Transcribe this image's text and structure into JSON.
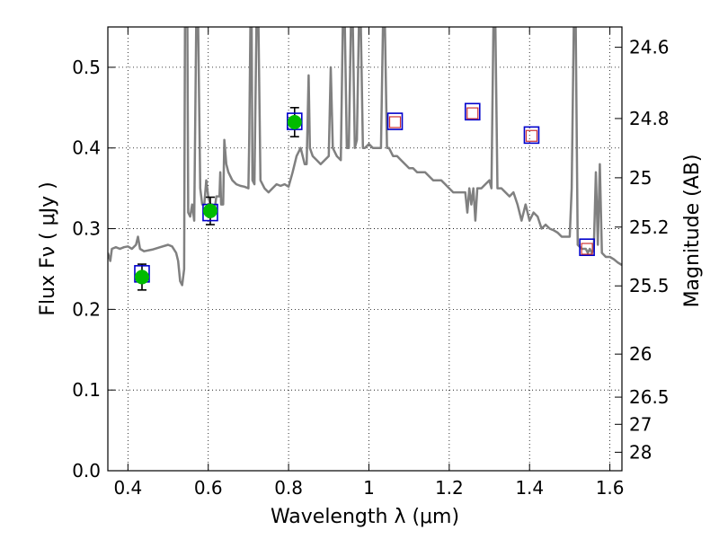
{
  "chart_data": {
    "type": "scatter",
    "xlabel": "Wavelength  λ (μm)",
    "ylabel": "Flux  Fν  ( μJy )",
    "ylabel_right": "Magnitude (AB)",
    "xlim": [
      0.35,
      1.63
    ],
    "ylim": [
      0.0,
      0.55
    ],
    "grid": true,
    "x_ticks": [
      {
        "value": 0.4,
        "label": "0.4"
      },
      {
        "value": 0.6,
        "label": "0.6"
      },
      {
        "value": 0.8,
        "label": "0.8"
      },
      {
        "value": 1.0,
        "label": "1"
      },
      {
        "value": 1.2,
        "label": "1.2"
      },
      {
        "value": 1.4,
        "label": "1.4"
      },
      {
        "value": 1.6,
        "label": "1.6"
      }
    ],
    "y_ticks": [
      {
        "value": 0.0,
        "label": "0.0"
      },
      {
        "value": 0.1,
        "label": "0.1"
      },
      {
        "value": 0.2,
        "label": "0.2"
      },
      {
        "value": 0.3,
        "label": "0.3"
      },
      {
        "value": 0.4,
        "label": "0.4"
      },
      {
        "value": 0.5,
        "label": "0.5"
      }
    ],
    "mag_ticks": [
      {
        "value": 24.6,
        "label": "24.6"
      },
      {
        "value": 24.8,
        "label": "24.8"
      },
      {
        "value": 25.0,
        "label": "25"
      },
      {
        "value": 25.2,
        "label": "25.2"
      },
      {
        "value": 25.5,
        "label": "25.5"
      },
      {
        "value": 26.0,
        "label": "26"
      },
      {
        "value": 26.5,
        "label": "26.5"
      },
      {
        "value": 27.0,
        "label": "27"
      },
      {
        "value": 28.0,
        "label": "28"
      }
    ],
    "series": [
      {
        "kind": "line",
        "color": "#808080",
        "points": [
          [
            0.35,
            0.27
          ],
          [
            0.356,
            0.26
          ],
          [
            0.36,
            0.275
          ],
          [
            0.37,
            0.277
          ],
          [
            0.38,
            0.275
          ],
          [
            0.39,
            0.277
          ],
          [
            0.4,
            0.278
          ],
          [
            0.41,
            0.275
          ],
          [
            0.42,
            0.28
          ],
          [
            0.425,
            0.29
          ],
          [
            0.43,
            0.275
          ],
          [
            0.44,
            0.272
          ],
          [
            0.46,
            0.274
          ],
          [
            0.48,
            0.277
          ],
          [
            0.5,
            0.28
          ],
          [
            0.51,
            0.278
          ],
          [
            0.52,
            0.27
          ],
          [
            0.525,
            0.26
          ],
          [
            0.53,
            0.235
          ],
          [
            0.535,
            0.23
          ],
          [
            0.54,
            0.25
          ],
          [
            0.542,
            0.55
          ],
          [
            0.548,
            0.55
          ],
          [
            0.55,
            0.32
          ],
          [
            0.555,
            0.315
          ],
          [
            0.56,
            0.33
          ],
          [
            0.565,
            0.31
          ],
          [
            0.57,
            0.55
          ],
          [
            0.575,
            0.55
          ],
          [
            0.58,
            0.35
          ],
          [
            0.585,
            0.33
          ],
          [
            0.59,
            0.33
          ],
          [
            0.595,
            0.36
          ],
          [
            0.6,
            0.34
          ],
          [
            0.605,
            0.33
          ],
          [
            0.61,
            0.33
          ],
          [
            0.615,
            0.32
          ],
          [
            0.62,
            0.34
          ],
          [
            0.628,
            0.34
          ],
          [
            0.63,
            0.37
          ],
          [
            0.632,
            0.33
          ],
          [
            0.637,
            0.33
          ],
          [
            0.64,
            0.41
          ],
          [
            0.645,
            0.38
          ],
          [
            0.65,
            0.37
          ],
          [
            0.66,
            0.36
          ],
          [
            0.67,
            0.355
          ],
          [
            0.68,
            0.353
          ],
          [
            0.69,
            0.352
          ],
          [
            0.7,
            0.35
          ],
          [
            0.702,
            0.41
          ],
          [
            0.705,
            0.55
          ],
          [
            0.708,
            0.55
          ],
          [
            0.71,
            0.36
          ],
          [
            0.715,
            0.355
          ],
          [
            0.72,
            0.55
          ],
          [
            0.725,
            0.55
          ],
          [
            0.73,
            0.36
          ],
          [
            0.74,
            0.35
          ],
          [
            0.75,
            0.345
          ],
          [
            0.76,
            0.35
          ],
          [
            0.77,
            0.355
          ],
          [
            0.78,
            0.353
          ],
          [
            0.79,
            0.355
          ],
          [
            0.8,
            0.352
          ],
          [
            0.81,
            0.37
          ],
          [
            0.82,
            0.39
          ],
          [
            0.83,
            0.4
          ],
          [
            0.84,
            0.38
          ],
          [
            0.845,
            0.38
          ],
          [
            0.85,
            0.49
          ],
          [
            0.853,
            0.4
          ],
          [
            0.86,
            0.39
          ],
          [
            0.87,
            0.385
          ],
          [
            0.88,
            0.38
          ],
          [
            0.89,
            0.385
          ],
          [
            0.9,
            0.39
          ],
          [
            0.905,
            0.5
          ],
          [
            0.91,
            0.4
          ],
          [
            0.92,
            0.39
          ],
          [
            0.93,
            0.385
          ],
          [
            0.935,
            0.55
          ],
          [
            0.94,
            0.55
          ],
          [
            0.945,
            0.4
          ],
          [
            0.95,
            0.4
          ],
          [
            0.955,
            0.55
          ],
          [
            0.96,
            0.55
          ],
          [
            0.965,
            0.4
          ],
          [
            0.97,
            0.41
          ],
          [
            0.975,
            0.55
          ],
          [
            0.98,
            0.55
          ],
          [
            0.985,
            0.4
          ],
          [
            0.99,
            0.4
          ],
          [
            1.0,
            0.405
          ],
          [
            1.01,
            0.4
          ],
          [
            1.02,
            0.4
          ],
          [
            1.03,
            0.4
          ],
          [
            1.035,
            0.55
          ],
          [
            1.04,
            0.55
          ],
          [
            1.045,
            0.4
          ],
          [
            1.05,
            0.4
          ],
          [
            1.06,
            0.39
          ],
          [
            1.07,
            0.39
          ],
          [
            1.08,
            0.385
          ],
          [
            1.09,
            0.38
          ],
          [
            1.1,
            0.375
          ],
          [
            1.11,
            0.375
          ],
          [
            1.12,
            0.37
          ],
          [
            1.13,
            0.37
          ],
          [
            1.14,
            0.37
          ],
          [
            1.15,
            0.365
          ],
          [
            1.16,
            0.36
          ],
          [
            1.17,
            0.36
          ],
          [
            1.18,
            0.36
          ],
          [
            1.19,
            0.355
          ],
          [
            1.2,
            0.35
          ],
          [
            1.21,
            0.345
          ],
          [
            1.22,
            0.345
          ],
          [
            1.23,
            0.345
          ],
          [
            1.24,
            0.345
          ],
          [
            1.245,
            0.32
          ],
          [
            1.25,
            0.35
          ],
          [
            1.255,
            0.33
          ],
          [
            1.26,
            0.35
          ],
          [
            1.265,
            0.31
          ],
          [
            1.27,
            0.35
          ],
          [
            1.28,
            0.35
          ],
          [
            1.29,
            0.355
          ],
          [
            1.3,
            0.36
          ],
          [
            1.305,
            0.35
          ],
          [
            1.31,
            0.55
          ],
          [
            1.315,
            0.55
          ],
          [
            1.32,
            0.35
          ],
          [
            1.33,
            0.35
          ],
          [
            1.34,
            0.345
          ],
          [
            1.35,
            0.34
          ],
          [
            1.36,
            0.345
          ],
          [
            1.37,
            0.33
          ],
          [
            1.38,
            0.31
          ],
          [
            1.39,
            0.33
          ],
          [
            1.4,
            0.31
          ],
          [
            1.41,
            0.32
          ],
          [
            1.42,
            0.315
          ],
          [
            1.43,
            0.3
          ],
          [
            1.44,
            0.305
          ],
          [
            1.45,
            0.3
          ],
          [
            1.46,
            0.298
          ],
          [
            1.47,
            0.295
          ],
          [
            1.48,
            0.29
          ],
          [
            1.49,
            0.29
          ],
          [
            1.5,
            0.29
          ],
          [
            1.505,
            0.35
          ],
          [
            1.51,
            0.55
          ],
          [
            1.515,
            0.55
          ],
          [
            1.52,
            0.28
          ],
          [
            1.53,
            0.275
          ],
          [
            1.54,
            0.275
          ],
          [
            1.545,
            0.27
          ],
          [
            1.55,
            0.275
          ],
          [
            1.555,
            0.27
          ],
          [
            1.56,
            0.275
          ],
          [
            1.565,
            0.37
          ],
          [
            1.57,
            0.28
          ],
          [
            1.575,
            0.38
          ],
          [
            1.58,
            0.27
          ],
          [
            1.59,
            0.265
          ],
          [
            1.6,
            0.265
          ],
          [
            1.61,
            0.262
          ],
          [
            1.62,
            0.258
          ],
          [
            1.63,
            0.255
          ]
        ]
      },
      {
        "kind": "points_filled",
        "marker": "circle",
        "color": "#00bb00",
        "points": [
          {
            "x": 0.435,
            "y": 0.24,
            "err": 0.016
          },
          {
            "x": 0.605,
            "y": 0.322,
            "err": 0.017
          },
          {
            "x": 0.815,
            "y": 0.432,
            "err": 0.018
          }
        ]
      },
      {
        "kind": "open_squares",
        "marker": "square",
        "color": "#0000cc",
        "points": [
          {
            "x": 0.435,
            "y": 0.244
          },
          {
            "x": 0.605,
            "y": 0.32
          },
          {
            "x": 0.815,
            "y": 0.433
          },
          {
            "x": 1.065,
            "y": 0.433
          },
          {
            "x": 1.258,
            "y": 0.445
          },
          {
            "x": 1.405,
            "y": 0.416
          },
          {
            "x": 1.543,
            "y": 0.277
          }
        ]
      },
      {
        "kind": "open_squares",
        "marker": "square",
        "color": "#cc3333",
        "points": [
          {
            "x": 1.065,
            "y": 0.432
          },
          {
            "x": 1.258,
            "y": 0.443
          },
          {
            "x": 1.405,
            "y": 0.415
          },
          {
            "x": 1.543,
            "y": 0.275
          }
        ]
      }
    ]
  }
}
